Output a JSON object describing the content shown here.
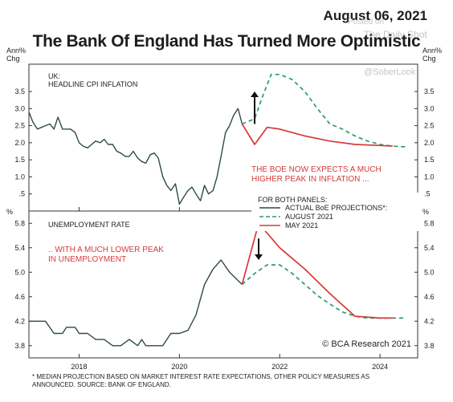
{
  "header": {
    "date": "August 06, 2021",
    "title": "The Bank Of England Has Turned More Optimistic"
  },
  "watermarks": [
    "Posted on",
    "The Daily Shot",
    "@SoberLook"
  ],
  "footnote": [
    "* MEDIAN PROJECTION BASED ON MARKET INTEREST RATE EXPECTATIONS, OTHER POLICY MEASURES AS",
    "ANNOUNCED. SOURCE: BANK OF ENGLAND."
  ],
  "credit": "© BCA Research 2021",
  "chart_data": [
    {
      "type": "line",
      "title": "UK: HEADLINE CPI INFLATION",
      "panel_title_lines": [
        "UK:",
        "HEADLINE CPI INFLATION"
      ],
      "ylabel": "Ann% Chg",
      "ylabel_lines": [
        "Ann%",
        "Chg"
      ],
      "ylim": [
        0,
        4.3
      ],
      "y_ticks": [
        0.5,
        1.0,
        1.5,
        2.0,
        2.5,
        3.0,
        3.5
      ],
      "y_tick_labels": [
        ".5",
        "1.0",
        "1.5",
        "2.0",
        "2.5",
        "3.0",
        "3.5"
      ],
      "annotation_lines": [
        "THE BOE NOW EXPECTS A MUCH",
        "HIGHER PEAK IN INFLATION ..."
      ],
      "arrow": {
        "x": 2021.5,
        "from": 2.55,
        "to": 3.5
      },
      "series": [
        {
          "name": "ACTUAL BoE PROJECTIONS*:",
          "style": "actual",
          "color": "#2e4a4a",
          "x": [
            2017.0,
            2017.08,
            2017.17,
            2017.25,
            2017.33,
            2017.42,
            2017.5,
            2017.58,
            2017.67,
            2017.75,
            2017.83,
            2017.92,
            2018.0,
            2018.08,
            2018.17,
            2018.25,
            2018.33,
            2018.42,
            2018.5,
            2018.58,
            2018.67,
            2018.75,
            2018.83,
            2018.92,
            2019.0,
            2019.08,
            2019.17,
            2019.25,
            2019.33,
            2019.42,
            2019.5,
            2019.58,
            2019.67,
            2019.75,
            2019.83,
            2019.92,
            2020.0,
            2020.08,
            2020.17,
            2020.25,
            2020.33,
            2020.42,
            2020.5,
            2020.58,
            2020.67,
            2020.75,
            2020.83,
            2020.92,
            2021.0,
            2021.08,
            2021.17,
            2021.25
          ],
          "y": [
            2.9,
            2.6,
            2.4,
            2.45,
            2.5,
            2.55,
            2.4,
            2.75,
            2.4,
            2.4,
            2.4,
            2.3,
            2.0,
            1.9,
            1.85,
            1.95,
            2.05,
            2.0,
            2.1,
            1.95,
            1.95,
            1.75,
            1.7,
            1.6,
            1.6,
            1.75,
            1.55,
            1.45,
            1.4,
            1.65,
            1.7,
            1.55,
            1.0,
            0.75,
            0.6,
            0.8,
            0.2,
            0.4,
            0.6,
            0.7,
            0.5,
            0.3,
            0.75,
            0.5,
            0.6,
            1.0,
            1.6,
            2.3,
            2.5,
            2.8,
            3.0,
            2.55
          ]
        },
        {
          "name": "AUGUST 2021",
          "style": "dashed",
          "color": "#2e9a66",
          "x": [
            2021.25,
            2021.5,
            2021.67,
            2021.83,
            2022.0,
            2022.25,
            2022.5,
            2022.75,
            2023.0,
            2023.25,
            2023.5,
            2023.75,
            2024.0,
            2024.25,
            2024.5
          ],
          "y": [
            2.55,
            2.7,
            3.4,
            4.0,
            4.0,
            3.85,
            3.5,
            3.0,
            2.55,
            2.4,
            2.2,
            2.05,
            1.95,
            1.9,
            1.88
          ]
        },
        {
          "name": "MAY 2021",
          "style": "solid",
          "color": "#d53a3a",
          "x": [
            2021.25,
            2021.5,
            2021.75,
            2022.0,
            2022.5,
            2023.0,
            2023.5,
            2024.0,
            2024.25
          ],
          "y": [
            2.55,
            1.95,
            2.45,
            2.4,
            2.2,
            2.05,
            1.95,
            1.92,
            1.9
          ]
        }
      ]
    },
    {
      "type": "line",
      "title": "UNEMPLOYMENT RATE",
      "ylabel": "%",
      "ylim": [
        3.6,
        6.0
      ],
      "y_ticks": [
        3.8,
        4.2,
        4.6,
        5.0,
        5.4,
        5.8
      ],
      "y_tick_labels": [
        "3.8",
        "4.2",
        "4.6",
        "5.0",
        "5.4",
        "5.8"
      ],
      "annotation_lines": [
        ".. WITH A MUCH LOWER PEAK",
        "IN UNEMPLOYMENT"
      ],
      "arrow": {
        "x": 2021.58,
        "from": 5.55,
        "to": 5.2
      },
      "x_ticks": [
        2018,
        2020,
        2022,
        2024
      ],
      "x_tick_labels": [
        "2018",
        "2020",
        "2022",
        "2024"
      ],
      "xlim": [
        2017.0,
        2024.75
      ],
      "legend_title": "FOR BOTH PANELS:",
      "series": [
        {
          "name": "ACTUAL BoE PROJECTIONS*:",
          "style": "actual",
          "color": "#2e4a4a",
          "x": [
            2017.0,
            2017.17,
            2017.33,
            2017.5,
            2017.67,
            2017.75,
            2017.92,
            2018.0,
            2018.17,
            2018.33,
            2018.5,
            2018.67,
            2018.83,
            2019.0,
            2019.17,
            2019.25,
            2019.33,
            2019.5,
            2019.67,
            2019.83,
            2020.0,
            2020.17,
            2020.33,
            2020.5,
            2020.67,
            2020.83,
            2021.0,
            2021.25
          ],
          "y": [
            4.2,
            4.2,
            4.2,
            4.0,
            4.0,
            4.1,
            4.1,
            4.0,
            4.0,
            3.9,
            3.9,
            3.8,
            3.8,
            3.9,
            3.8,
            3.9,
            3.8,
            3.8,
            3.8,
            4.0,
            4.0,
            4.05,
            4.3,
            4.8,
            5.05,
            5.2,
            5.0,
            4.8
          ]
        },
        {
          "name": "AUGUST 2021",
          "style": "dashed",
          "color": "#2e9a66",
          "x": [
            2021.25,
            2021.5,
            2021.75,
            2022.0,
            2022.25,
            2022.5,
            2022.75,
            2023.0,
            2023.25,
            2023.5,
            2023.75,
            2024.0,
            2024.25,
            2024.5
          ],
          "y": [
            4.8,
            4.98,
            5.12,
            5.12,
            4.98,
            4.8,
            4.62,
            4.48,
            4.35,
            4.28,
            4.25,
            4.25,
            4.25,
            4.25
          ]
        },
        {
          "name": "MAY 2021",
          "style": "solid",
          "color": "#d53a3a",
          "x": [
            2021.25,
            2021.58,
            2022.0,
            2022.5,
            2023.0,
            2023.5,
            2024.0,
            2024.25
          ],
          "y": [
            4.8,
            5.8,
            5.4,
            5.05,
            4.65,
            4.28,
            4.25,
            4.25
          ]
        }
      ]
    }
  ]
}
